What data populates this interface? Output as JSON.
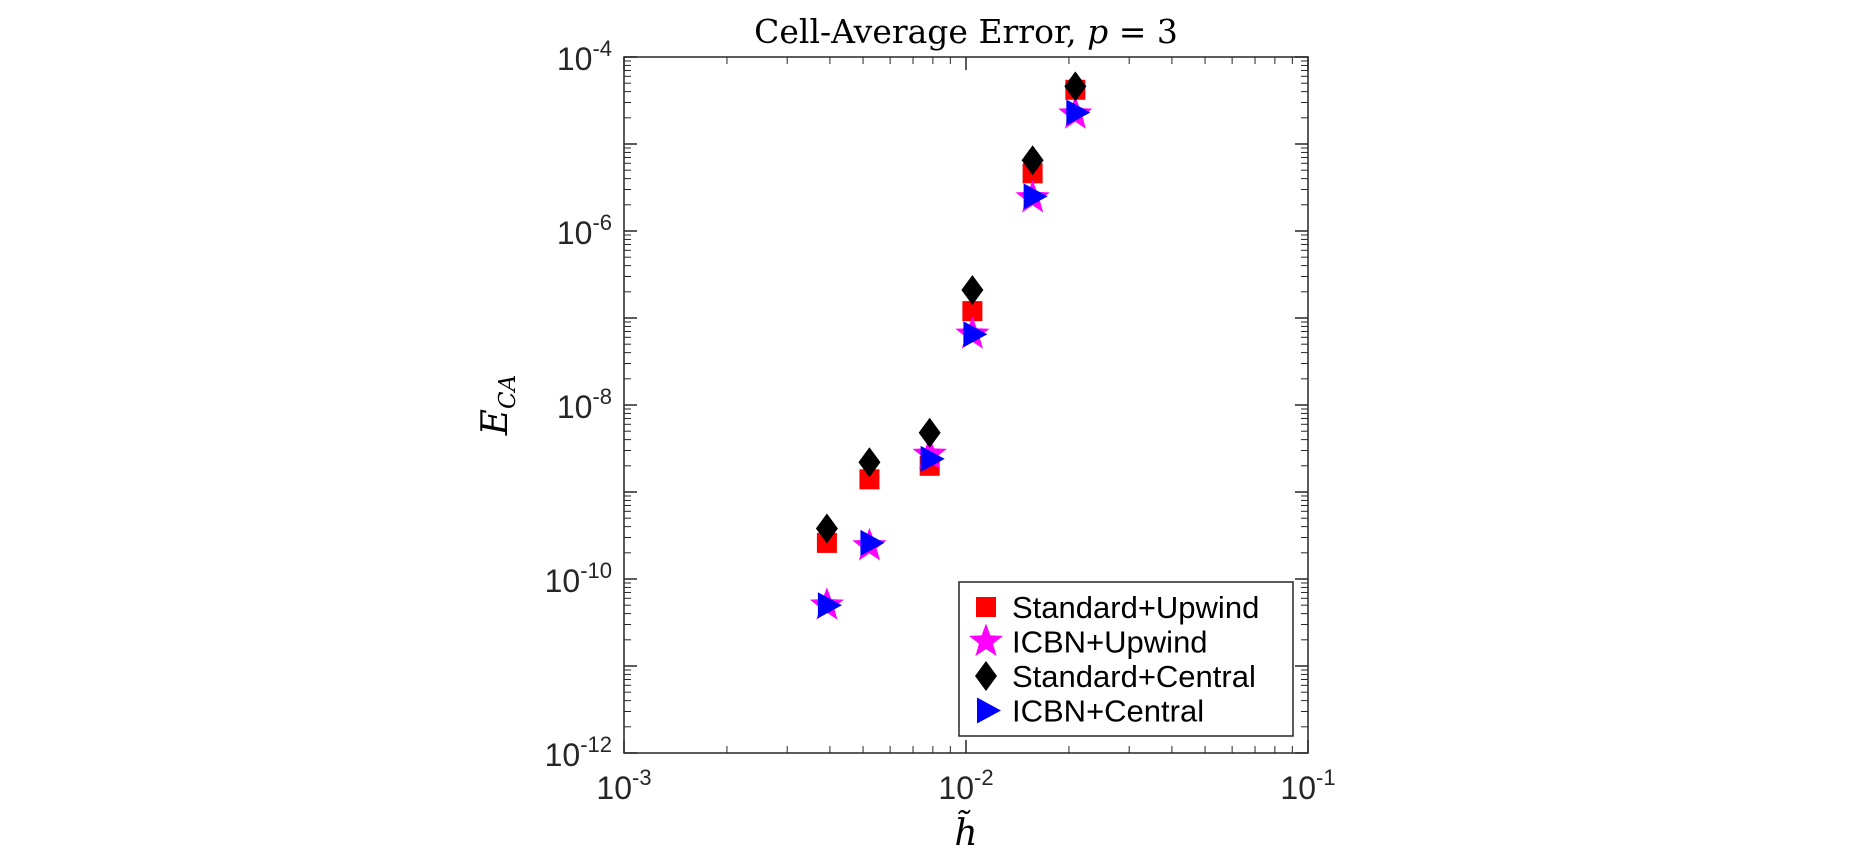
{
  "chart_data": {
    "type": "scatter",
    "title": {
      "prefix": "Cell-Average Error, ",
      "var": "p",
      "suffix": " = 3"
    },
    "xlabel": "h̃",
    "ylabel": {
      "main": "E",
      "sub": "CA"
    },
    "xscale": "log",
    "yscale": "log",
    "xlim": [
      0.001,
      0.1
    ],
    "ylim": [
      1e-12,
      0.0001
    ],
    "x_ticks": [
      {
        "value": 0.001,
        "base": "10",
        "exp": "-3"
      },
      {
        "value": 0.01,
        "base": "10",
        "exp": "-2"
      },
      {
        "value": 0.1,
        "base": "10",
        "exp": "-1"
      }
    ],
    "y_ticks": [
      {
        "value": 1e-12,
        "base": "10",
        "exp": "-12"
      },
      {
        "value": 1e-10,
        "base": "10",
        "exp": "-10"
      },
      {
        "value": 1e-08,
        "base": "10",
        "exp": "-8"
      },
      {
        "value": 1e-06,
        "base": "10",
        "exp": "-6"
      },
      {
        "value": 0.0001,
        "base": "10",
        "exp": "-4"
      }
    ],
    "grid": false,
    "legend_position": "bottom-right",
    "series": [
      {
        "name": "Standard+Upwind",
        "marker": "square",
        "color": "#ff0000",
        "x": [
          0.00392,
          0.00522,
          0.00783,
          0.01044,
          0.01566,
          0.02088
        ],
        "y": [
          2.6e-10,
          1.4e-09,
          2e-09,
          1.2e-07,
          4.6e-06,
          4.2e-05
        ]
      },
      {
        "name": "ICBN+Upwind",
        "marker": "star",
        "color": "#ff00ff",
        "x": [
          0.00392,
          0.00522,
          0.00783,
          0.01044,
          0.01566,
          0.02088
        ],
        "y": [
          5e-11,
          2.4e-10,
          2.7e-09,
          6.5e-08,
          2.4e-06,
          2.2e-05
        ]
      },
      {
        "name": "Standard+Central",
        "marker": "diamond",
        "color": "#000000",
        "x": [
          0.00392,
          0.00522,
          0.00783,
          0.01044,
          0.01566,
          0.02088
        ],
        "y": [
          3.8e-10,
          2.2e-09,
          4.8e-09,
          2.1e-07,
          6.5e-06,
          4.6e-05
        ]
      },
      {
        "name": "ICBN+Central",
        "marker": "triangle-right",
        "color": "#0000ff",
        "x": [
          0.00392,
          0.00522,
          0.00783,
          0.01044,
          0.01566,
          0.02088
        ],
        "y": [
          5e-11,
          2.6e-10,
          2.4e-09,
          6.5e-08,
          2.5e-06,
          2.3e-05
        ]
      }
    ]
  }
}
